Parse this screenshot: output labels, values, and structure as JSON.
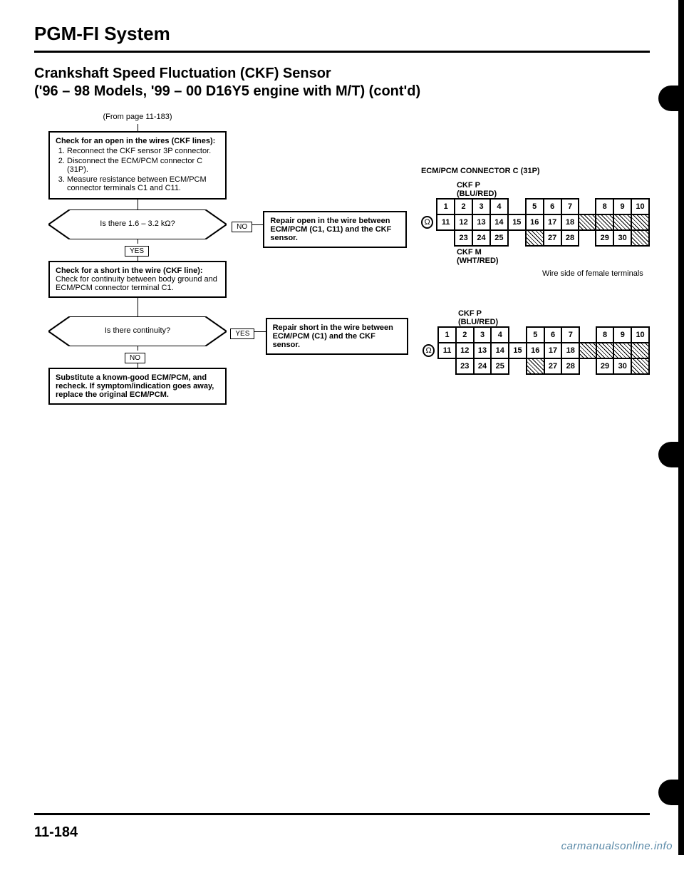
{
  "header": {
    "system": "PGM-FI System",
    "title_line1": "Crankshaft Speed Fluctuation (CKF) Sensor",
    "title_line2": "('96 – 98 Models, '99 – 00 D16Y5 engine with M/T) (cont'd)",
    "from_page": "(From page 11-183)"
  },
  "flow": {
    "check_open": {
      "heading": "Check for an open in the wires (CKF lines):",
      "steps": [
        "Reconnect the CKF sensor 3P connector.",
        "Disconnect the ECM/PCM connector C (31P).",
        "Measure resistance between ECM/PCM connector terminals C1 and C11."
      ]
    },
    "q_resistance": "Is there 1.6 – 3.2 kΩ?",
    "yes": "YES",
    "no": "NO",
    "repair_open": "Repair open in the wire between ECM/PCM (C1, C11) and the CKF sensor.",
    "check_short": {
      "heading": "Check for a short in the wire (CKF line):",
      "body": "Check for continuity between body ground and ECM/PCM connector terminal C1."
    },
    "q_continuity": "Is there continuity?",
    "repair_short": "Repair short in the wire between ECM/PCM (C1) and the CKF sensor.",
    "substitute": "Substitute a known-good ECM/PCM, and recheck. If symptom/indication goes away, replace the original ECM/PCM."
  },
  "connector": {
    "title": "ECM/PCM CONNECTOR C (31P)",
    "ckf_p": "CKF P",
    "ckf_p_color": "(BLU/RED)",
    "ckf_m": "CKF M",
    "ckf_m_color": "(WHT/RED)",
    "wire_side": "Wire side of female terminals",
    "row1": [
      "1",
      "2",
      "3",
      "4",
      "",
      "5",
      "6",
      "7",
      "",
      "8",
      "9",
      "10"
    ],
    "row2": [
      "11",
      "12",
      "13",
      "14",
      "15",
      "16",
      "17",
      "18",
      "H",
      "H",
      "H",
      "H"
    ],
    "row3": [
      "",
      "23",
      "24",
      "25",
      "",
      "H",
      "27",
      "28",
      "",
      "29",
      "30",
      "H"
    ]
  },
  "footer": {
    "page": "11-184",
    "watermark": "carmanualsonline.info"
  }
}
